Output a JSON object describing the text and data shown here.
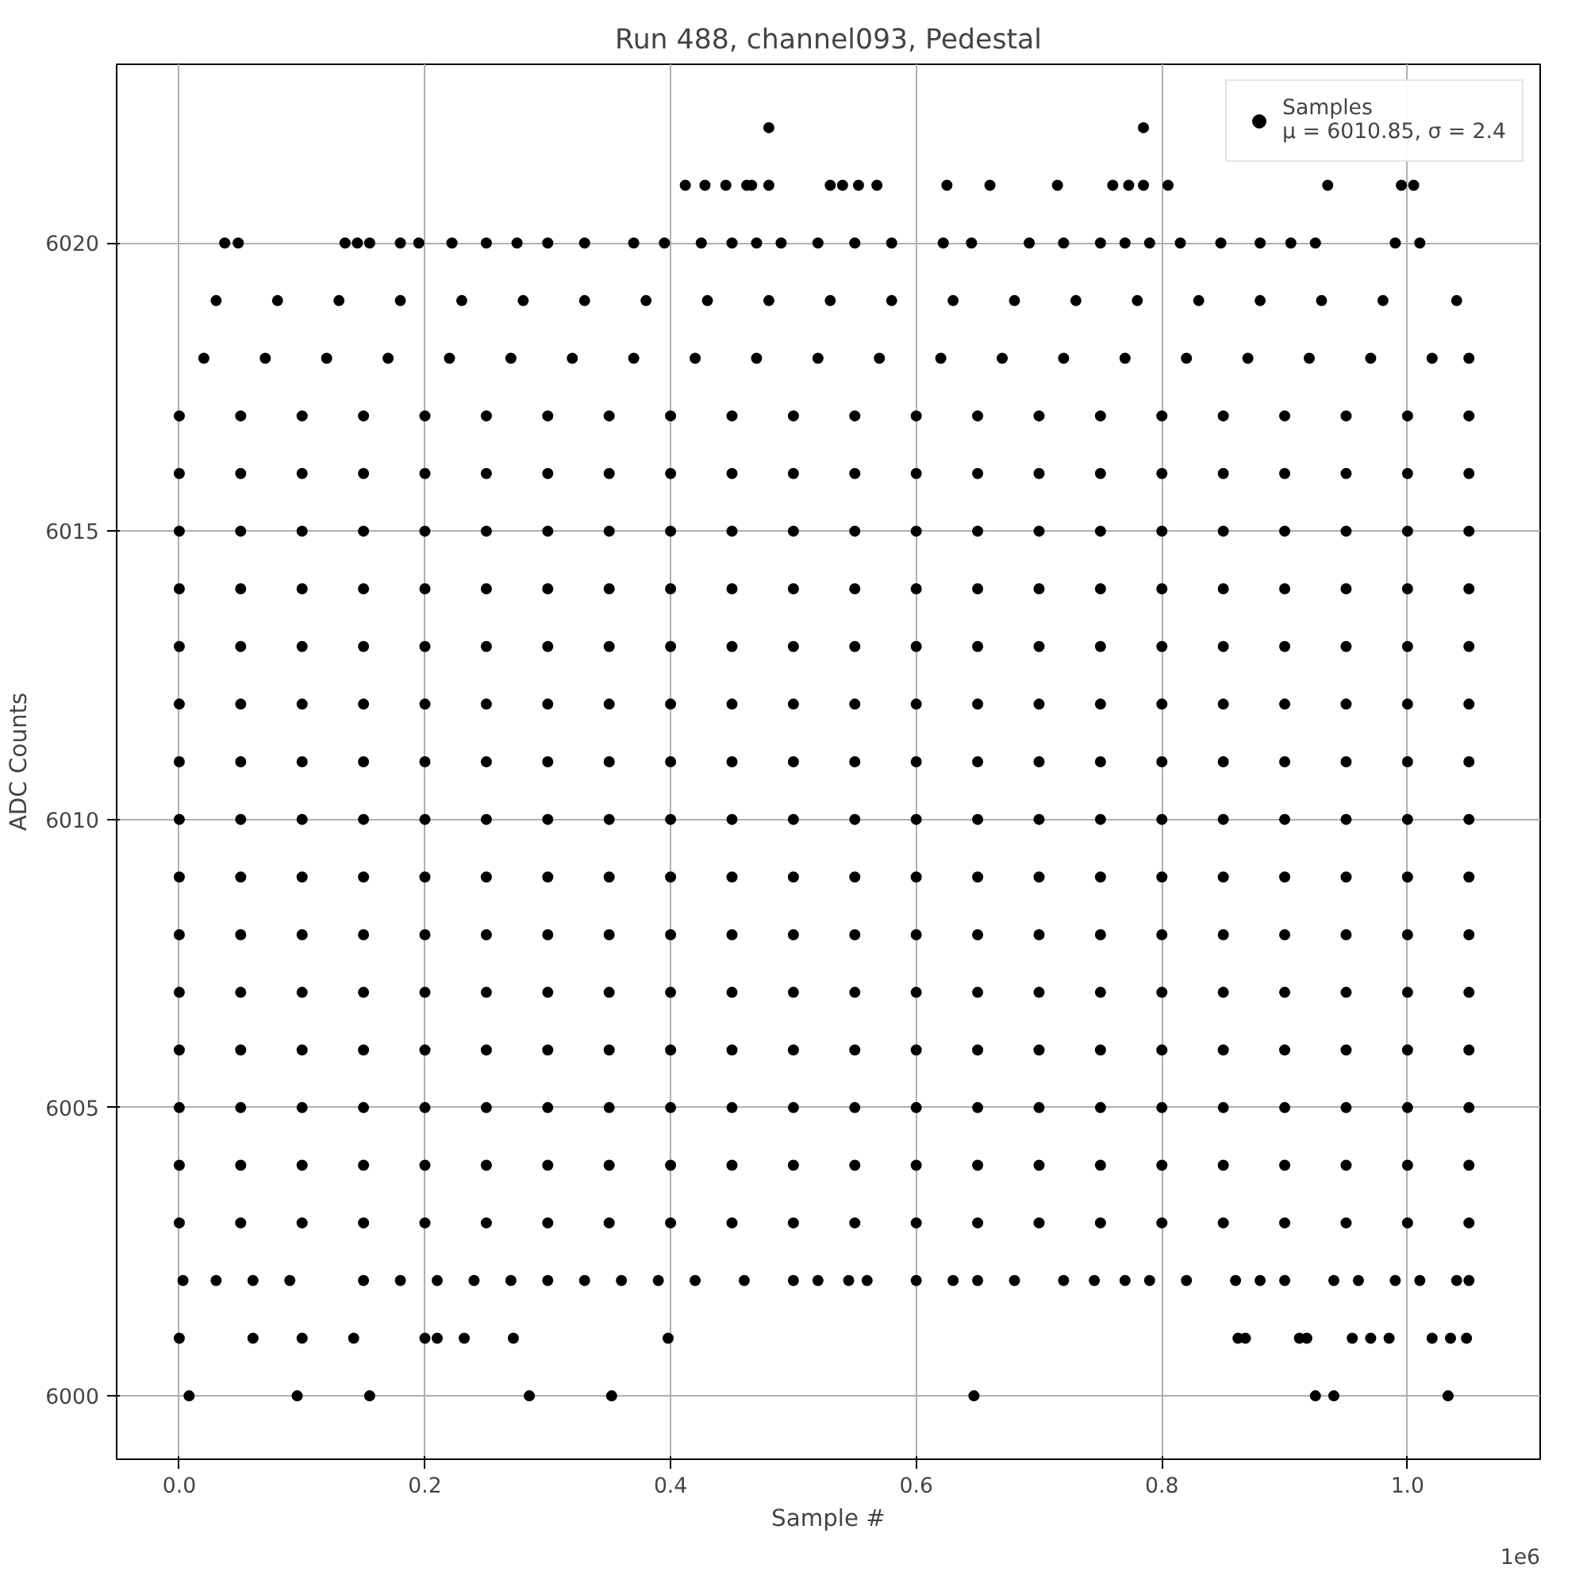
{
  "chart_data": {
    "type": "scatter",
    "title": "Run 488, channel093, Pedestal",
    "xlabel": "Sample #",
    "ylabel": "ADC Counts",
    "annotations": [
      "1e6"
    ],
    "xlim": [
      -0.051,
      1.108
    ],
    "ylim": [
      5998.9,
      6023.1
    ],
    "xticks": [
      {
        "value": 0,
        "label": "0.0"
      },
      0.2,
      0.4,
      0.6,
      0.8,
      {
        "value": 1,
        "label": "1.0"
      }
    ],
    "yticks": [
      6000,
      6005,
      6010,
      6015,
      6020
    ],
    "grid": true,
    "legend": "top right",
    "marker": "circle",
    "x": [
      0,
      0.05,
      0.1,
      0.15,
      0.2,
      0.25,
      0.3,
      0.35,
      0.4,
      0.45,
      0.5,
      0.55,
      0.6,
      0.65,
      0.7,
      0.75,
      0.8,
      0.85,
      0.9,
      0.95,
      1.0,
      1.05
    ],
    "series": [
      {
        "name": "Samples\nμ = 6010.85, σ = 2.4",
        "color": "#000000",
        "values": [
          6010,
          6010,
          6010,
          6010,
          6010,
          6010,
          6010,
          6010,
          6010,
          6010,
          6010,
          6010,
          6010,
          6010,
          6010,
          6010,
          6010,
          6010,
          6010,
          6010,
          6010,
          6010
        ]
      },
      {
        "color": "#000000",
        "values": [
          6004,
          6004,
          6004,
          6004,
          6004,
          6004,
          6004,
          6004,
          6004,
          6004,
          6004,
          6004,
          6004,
          6004,
          6004,
          6004,
          6004,
          6004,
          6004,
          6004,
          6004,
          6004
        ]
      },
      {
        "color": "#000000",
        "values": [
          6005,
          6005,
          6005,
          6005,
          6005,
          6005,
          6005,
          6005,
          6005,
          6005,
          6005,
          6005,
          6005,
          6005,
          6005,
          6005,
          6005,
          6005,
          6005,
          6005,
          6005,
          6005
        ]
      },
      {
        "color": "#000000",
        "values": [
          6006,
          6006,
          6006,
          6006,
          6006,
          6006,
          6006,
          6006,
          6006,
          6006,
          6006,
          6006,
          6006,
          6006,
          6006,
          6006,
          6006,
          6006,
          6006,
          6006,
          6006,
          6006
        ]
      },
      {
        "color": "#000000",
        "values": [
          6007,
          6007,
          6007,
          6007,
          6007,
          6007,
          6007,
          6007,
          6007,
          6007,
          6007,
          6007,
          6007,
          6007,
          6007,
          6007,
          6007,
          6007,
          6007,
          6007,
          6007,
          6007
        ]
      },
      {
        "color": "#000000",
        "values": [
          6008,
          6008,
          6008,
          6008,
          6008,
          6008,
          6008,
          6008,
          6008,
          6008,
          6008,
          6008,
          6008,
          6008,
          6008,
          6008,
          6008,
          6008,
          6008,
          6008,
          6008,
          6008
        ]
      },
      {
        "color": "#000000",
        "values": [
          6009,
          6009,
          6009,
          6009,
          6009,
          6009,
          6009,
          6009,
          6009,
          6009,
          6009,
          6009,
          6009,
          6009,
          6009,
          6009,
          6009,
          6009,
          6009,
          6009,
          6009,
          6009
        ]
      },
      {
        "color": "#000000",
        "values": [
          6011,
          6011,
          6011,
          6011,
          6011,
          6011,
          6011,
          6011,
          6011,
          6011,
          6011,
          6011,
          6011,
          6011,
          6011,
          6011,
          6011,
          6011,
          6011,
          6011,
          6011,
          6011
        ]
      },
      {
        "color": "#000000",
        "values": [
          6012,
          6012,
          6012,
          6012,
          6012,
          6012,
          6012,
          6012,
          6012,
          6012,
          6012,
          6012,
          6012,
          6012,
          6012,
          6012,
          6012,
          6012,
          6012,
          6012,
          6012,
          6012
        ]
      },
      {
        "color": "#000000",
        "values": [
          6013,
          6013,
          6013,
          6013,
          6013,
          6013,
          6013,
          6013,
          6013,
          6013,
          6013,
          6013,
          6013,
          6013,
          6013,
          6013,
          6013,
          6013,
          6013,
          6013,
          6013,
          6013
        ]
      },
      {
        "color": "#000000",
        "values": [
          6014,
          6014,
          6014,
          6014,
          6014,
          6014,
          6014,
          6014,
          6014,
          6014,
          6014,
          6014,
          6014,
          6014,
          6014,
          6014,
          6014,
          6014,
          6014,
          6014,
          6014,
          6014
        ]
      },
      {
        "color": "#000000",
        "values": [
          6015,
          6015,
          6015,
          6015,
          6015,
          6015,
          6015,
          6015,
          6015,
          6015,
          6015,
          6015,
          6015,
          6015,
          6015,
          6015,
          6015,
          6015,
          6015,
          6015,
          6015,
          6015
        ]
      },
      {
        "color": "#000000",
        "values": [
          6016,
          6016,
          6016,
          6016,
          6016,
          6016,
          6016,
          6016,
          6016,
          6016,
          6016,
          6016,
          6016,
          6016,
          6016,
          6016,
          6016,
          6016,
          6016,
          6016,
          6016,
          6016
        ]
      },
      {
        "color": "#000000",
        "values": [
          6017,
          6017,
          6017,
          6017,
          6017,
          6017,
          6017,
          6017,
          6017,
          6017,
          6017,
          6017,
          6017,
          6017,
          6017,
          6017,
          6017,
          6017,
          6017,
          6017,
          6017,
          6017
        ]
      },
      {
        "color": "#000000",
        "values": [
          6003,
          6003,
          6003,
          6003,
          6003,
          6003,
          6003,
          6003,
          6003,
          6003,
          6003,
          6003,
          6003,
          6003,
          6003,
          6003,
          6003,
          6003,
          6003,
          6003,
          6003,
          6003
        ]
      },
      {
        "color": "#000000",
        "x": [
          0.02,
          0.07,
          0.12,
          0.17,
          0.22,
          0.27,
          0.32,
          0.37,
          0.42,
          0.47,
          0.52,
          0.57,
          0.62,
          0.67,
          0.72,
          0.77,
          0.82,
          0.87,
          0.92,
          0.97,
          1.02,
          1.05
        ],
        "values": [
          6018,
          6018,
          6018,
          6018,
          6018,
          6018,
          6018,
          6018,
          6018,
          6018,
          6018,
          6018,
          6018,
          6018,
          6018,
          6018,
          6018,
          6018,
          6018,
          6018,
          6018,
          6018
        ]
      },
      {
        "color": "#000000",
        "x": [
          0.03,
          0.08,
          0.13,
          0.18,
          0.23,
          0.28,
          0.33,
          0.38,
          0.43,
          0.48,
          0.53,
          0.58,
          0.63,
          0.68,
          0.73,
          0.78,
          0.83,
          0.88,
          0.93,
          0.98,
          1.04
        ],
        "values": [
          6019,
          6019,
          6019,
          6019,
          6019,
          6019,
          6019,
          6019,
          6019,
          6019,
          6019,
          6019,
          6019,
          6019,
          6019,
          6019,
          6019,
          6019,
          6019,
          6019,
          6019
        ]
      },
      {
        "color": "#000000",
        "x": [
          0.037,
          0.048,
          0.135,
          0.145,
          0.155,
          0.18,
          0.195,
          0.222,
          0.25,
          0.275,
          0.3,
          0.33,
          0.37,
          0.395,
          0.425,
          0.45,
          0.47,
          0.49,
          0.52,
          0.55,
          0.58,
          0.622,
          0.645,
          0.692,
          0.72,
          0.75,
          0.77,
          0.79,
          0.815,
          0.848,
          0.88,
          0.905,
          0.925,
          0.99,
          1.01
        ],
        "values": [
          6020,
          6020,
          6020,
          6020,
          6020,
          6020,
          6020,
          6020,
          6020,
          6020,
          6020,
          6020,
          6020,
          6020,
          6020,
          6020,
          6020,
          6020,
          6020,
          6020,
          6020,
          6020,
          6020,
          6020,
          6020,
          6020,
          6020,
          6020,
          6020,
          6020,
          6020,
          6020,
          6020,
          6020,
          6020
        ]
      },
      {
        "color": "#000000",
        "x": [
          0.412,
          0.428,
          0.445,
          0.462,
          0.466,
          0.48,
          0.53,
          0.54,
          0.553,
          0.568,
          0.625,
          0.66,
          0.715,
          0.76,
          0.773,
          0.785,
          0.805,
          0.935,
          0.995,
          1.005
        ],
        "values": [
          6021,
          6021,
          6021,
          6021,
          6021,
          6021,
          6021,
          6021,
          6021,
          6021,
          6021,
          6021,
          6021,
          6021,
          6021,
          6021,
          6021,
          6021,
          6021,
          6021
        ]
      },
      {
        "color": "#000000",
        "x": [
          0.48,
          0.785
        ],
        "values": [
          6022,
          6022
        ]
      },
      {
        "color": "#000000",
        "x": [
          0.003,
          0.03,
          0.06,
          0.09,
          0.15,
          0.18,
          0.21,
          0.24,
          0.27,
          0.3,
          0.33,
          0.36,
          0.39,
          0.42,
          0.46,
          0.5,
          0.52,
          0.545,
          0.56,
          0.6,
          0.63,
          0.65,
          0.68,
          0.72,
          0.745,
          0.77,
          0.79,
          0.82,
          0.86,
          0.88,
          0.9,
          0.94,
          0.96,
          0.99,
          1.01,
          1.04,
          1.05
        ],
        "values": [
          6002,
          6002,
          6002,
          6002,
          6002,
          6002,
          6002,
          6002,
          6002,
          6002,
          6002,
          6002,
          6002,
          6002,
          6002,
          6002,
          6002,
          6002,
          6002,
          6002,
          6002,
          6002,
          6002,
          6002,
          6002,
          6002,
          6002,
          6002,
          6002,
          6002,
          6002,
          6002,
          6002,
          6002,
          6002,
          6002,
          6002
        ]
      },
      {
        "color": "#000000",
        "x": [
          0,
          0.06,
          0.1,
          0.142,
          0.2,
          0.21,
          0.232,
          0.272,
          0.398,
          0.862,
          0.868,
          0.912,
          0.918,
          0.955,
          0.97,
          0.985,
          1.02,
          1.035,
          1.048
        ],
        "values": [
          6001,
          6001,
          6001,
          6001,
          6001,
          6001,
          6001,
          6001,
          6001,
          6001,
          6001,
          6001,
          6001,
          6001,
          6001,
          6001,
          6001,
          6001,
          6001
        ]
      },
      {
        "color": "#000000",
        "x": [
          0.008,
          0.096,
          0.155,
          0.285,
          0.352,
          0.647,
          0.925,
          0.94,
          1.033
        ],
        "values": [
          6000,
          6000,
          6000,
          6000,
          6000,
          6000,
          6000,
          6000,
          6000
        ]
      }
    ]
  }
}
